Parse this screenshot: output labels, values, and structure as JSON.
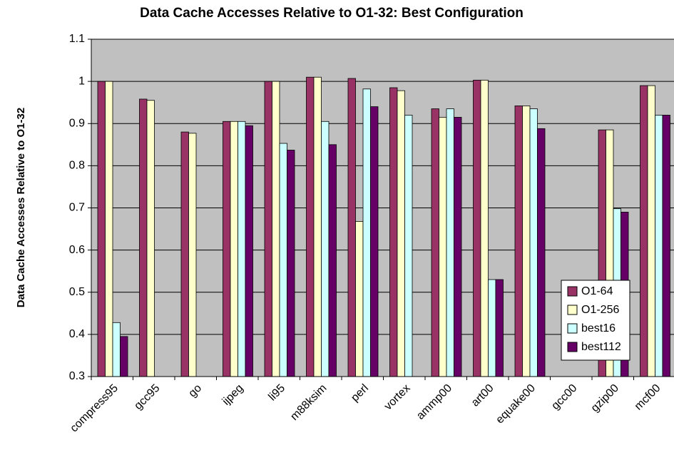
{
  "chart_data": {
    "type": "bar",
    "title": "Data Cache Accesses Relative to O1-32: Best Configuration",
    "y_label": "Data Cache Accesses Relative to O1-32",
    "categories": [
      "compress95",
      "gcc95",
      "go",
      "ijpeg",
      "li95",
      "m88ksim",
      "perl",
      "vortex",
      "ammp00",
      "art00",
      "equake00",
      "gcc00",
      "gzip00",
      "mcf00"
    ],
    "series": [
      {
        "name": "O1-64",
        "color": "#993366",
        "values": [
          1.0,
          0.958,
          0.88,
          0.905,
          1.0,
          1.01,
          1.007,
          0.985,
          0.935,
          1.003,
          0.942,
          null,
          0.885,
          0.99
        ]
      },
      {
        "name": "O1-256",
        "color": "#ffffcc",
        "values": [
          1.0,
          0.955,
          0.877,
          0.905,
          1.0,
          1.01,
          0.668,
          0.978,
          0.915,
          1.003,
          0.942,
          null,
          0.885,
          0.99
        ]
      },
      {
        "name": "best16",
        "color": "#ccffff",
        "values": [
          0.428,
          null,
          null,
          0.905,
          0.853,
          0.905,
          0.982,
          0.92,
          0.935,
          0.53,
          0.935,
          null,
          0.698,
          0.92
        ]
      },
      {
        "name": "best112",
        "color": "#660066",
        "values": [
          0.395,
          null,
          null,
          0.895,
          0.837,
          0.85,
          0.94,
          null,
          0.915,
          0.53,
          0.888,
          null,
          0.69,
          0.92
        ]
      }
    ],
    "ylim": [
      0.3,
      1.1
    ],
    "yticks": [
      0.3,
      0.4,
      0.5,
      0.6,
      0.7,
      0.8,
      0.9,
      1,
      1.1
    ],
    "grid": true,
    "plot_background": "#c0c0c0",
    "legend_position": "lower-right"
  }
}
